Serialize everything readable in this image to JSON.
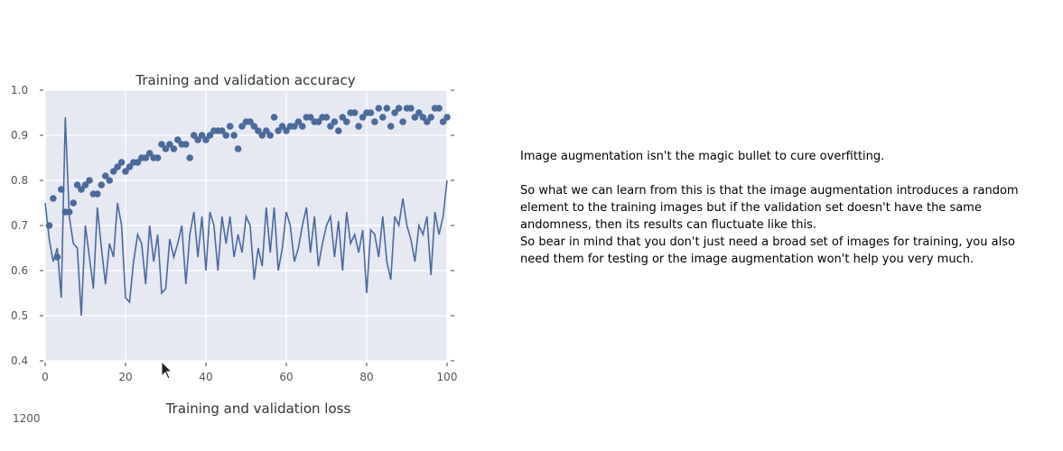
{
  "chart_data": {
    "type": "scatter",
    "title": "Training and validation accuracy",
    "xlabel": "",
    "ylabel": "",
    "xlim": [
      0,
      100
    ],
    "ylim": [
      0.4,
      1.0
    ],
    "xticks": [
      "0",
      "20",
      "40",
      "60",
      "80",
      "100"
    ],
    "yticks": [
      "0.4",
      "0.5",
      "0.6",
      "0.7",
      "0.8",
      "0.9",
      "1.0"
    ],
    "grid": true,
    "colors": {
      "background": "#e6e8f2",
      "series": "#4c6a9a",
      "grid": "#ffffff"
    },
    "series": [
      {
        "mark": "point",
        "x": [
          1,
          2,
          3,
          4,
          5,
          6,
          7,
          8,
          9,
          10,
          11,
          12,
          13,
          14,
          15,
          16,
          17,
          18,
          19,
          20,
          21,
          22,
          23,
          24,
          25,
          26,
          27,
          28,
          29,
          30,
          31,
          32,
          33,
          34,
          35,
          36,
          37,
          38,
          39,
          40,
          41,
          42,
          43,
          44,
          45,
          46,
          47,
          48,
          49,
          50,
          51,
          52,
          53,
          54,
          55,
          56,
          57,
          58,
          59,
          60,
          61,
          62,
          63,
          64,
          65,
          66,
          67,
          68,
          69,
          70,
          71,
          72,
          73,
          74,
          75,
          76,
          77,
          78,
          79,
          80,
          81,
          82,
          83,
          84,
          85,
          86,
          87,
          88,
          89,
          90,
          91,
          92,
          93,
          94,
          95,
          96,
          97,
          98,
          99,
          100
        ],
        "y": [
          0.7,
          0.76,
          0.63,
          0.78,
          0.73,
          0.73,
          0.75,
          0.79,
          0.78,
          0.79,
          0.8,
          0.77,
          0.77,
          0.79,
          0.81,
          0.8,
          0.82,
          0.83,
          0.84,
          0.82,
          0.83,
          0.84,
          0.84,
          0.85,
          0.85,
          0.86,
          0.85,
          0.85,
          0.88,
          0.87,
          0.88,
          0.87,
          0.89,
          0.88,
          0.88,
          0.85,
          0.9,
          0.89,
          0.9,
          0.89,
          0.9,
          0.91,
          0.91,
          0.91,
          0.9,
          0.92,
          0.9,
          0.87,
          0.92,
          0.93,
          0.93,
          0.92,
          0.91,
          0.9,
          0.91,
          0.9,
          0.94,
          0.91,
          0.92,
          0.91,
          0.92,
          0.92,
          0.93,
          0.92,
          0.94,
          0.94,
          0.93,
          0.93,
          0.94,
          0.94,
          0.92,
          0.93,
          0.91,
          0.94,
          0.93,
          0.95,
          0.95,
          0.92,
          0.94,
          0.95,
          0.95,
          0.93,
          0.96,
          0.94,
          0.96,
          0.92,
          0.95,
          0.96,
          0.93,
          0.96,
          0.96,
          0.94,
          0.95,
          0.94,
          0.93,
          0.94,
          0.96,
          0.96,
          0.93,
          0.94
        ]
      },
      {
        "mark": "line",
        "x": [
          0,
          1,
          2,
          3,
          4,
          5,
          6,
          7,
          8,
          9,
          10,
          11,
          12,
          13,
          14,
          15,
          16,
          17,
          18,
          19,
          20,
          21,
          22,
          23,
          24,
          25,
          26,
          27,
          28,
          29,
          30,
          31,
          32,
          33,
          34,
          35,
          36,
          37,
          38,
          39,
          40,
          41,
          42,
          43,
          44,
          45,
          46,
          47,
          48,
          49,
          50,
          51,
          52,
          53,
          54,
          55,
          56,
          57,
          58,
          59,
          60,
          61,
          62,
          63,
          64,
          65,
          66,
          67,
          68,
          69,
          70,
          71,
          72,
          73,
          74,
          75,
          76,
          77,
          78,
          79,
          80,
          81,
          82,
          83,
          84,
          85,
          86,
          87,
          88,
          89,
          90,
          91,
          92,
          93,
          94,
          95,
          96,
          97,
          98,
          99,
          100
        ],
        "y": [
          0.75,
          0.67,
          0.62,
          0.65,
          0.54,
          0.94,
          0.72,
          0.66,
          0.65,
          0.5,
          0.7,
          0.63,
          0.56,
          0.74,
          0.65,
          0.57,
          0.66,
          0.63,
          0.75,
          0.7,
          0.54,
          0.53,
          0.62,
          0.68,
          0.66,
          0.57,
          0.7,
          0.62,
          0.68,
          0.55,
          0.56,
          0.67,
          0.63,
          0.66,
          0.7,
          0.57,
          0.68,
          0.73,
          0.63,
          0.72,
          0.6,
          0.73,
          0.7,
          0.6,
          0.72,
          0.66,
          0.72,
          0.63,
          0.68,
          0.64,
          0.72,
          0.7,
          0.58,
          0.65,
          0.61,
          0.74,
          0.64,
          0.74,
          0.6,
          0.65,
          0.73,
          0.7,
          0.62,
          0.65,
          0.7,
          0.74,
          0.64,
          0.72,
          0.61,
          0.66,
          0.7,
          0.72,
          0.63,
          0.71,
          0.6,
          0.73,
          0.66,
          0.68,
          0.64,
          0.69,
          0.55,
          0.69,
          0.68,
          0.63,
          0.72,
          0.62,
          0.58,
          0.72,
          0.7,
          0.76,
          0.7,
          0.67,
          0.62,
          0.7,
          0.68,
          0.72,
          0.59,
          0.73,
          0.68,
          0.72,
          0.8
        ]
      }
    ]
  },
  "chart2": {
    "title": "Training and validation loss",
    "first_ytick": "1200"
  },
  "notes": {
    "line1": "Image augmentation isn't the magic bullet to cure overfitting.",
    "line2": "So what we can learn from this is that the image augmentation introduces a random element to the training images but if the validation set doesn't have the same andomness, then its results can fluctuate like this.",
    "line3": "So bear in mind that you don't just need a broad set of images for training, you also need them for testing or the image augmentation won't help you very much."
  },
  "icons": {
    "cursor": "mouse-pointer-icon"
  }
}
